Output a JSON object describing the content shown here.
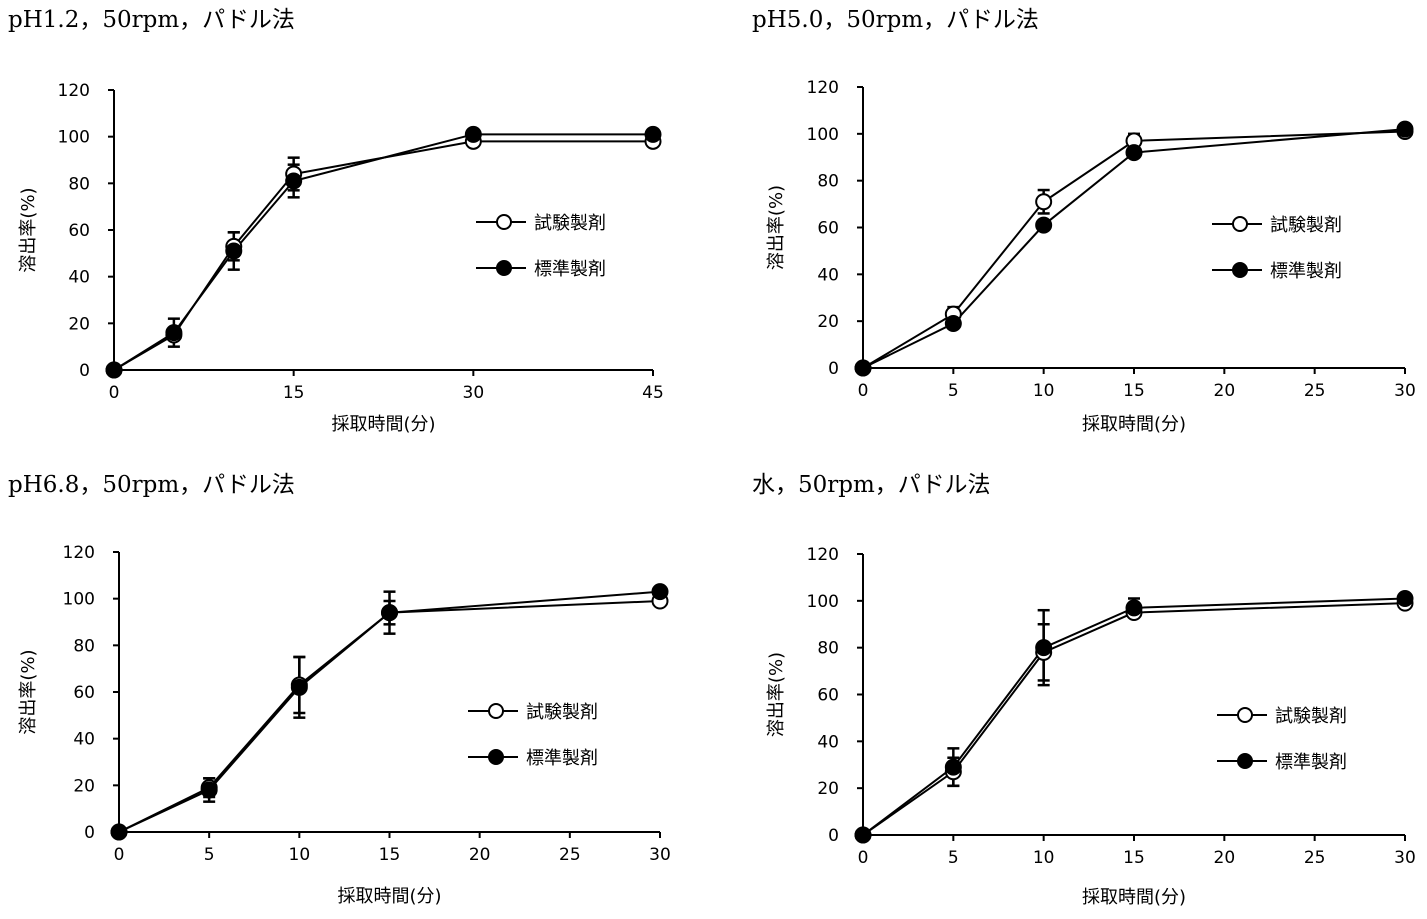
{
  "panels": [
    {
      "title": "pH1.2，50rpm，パドル法",
      "chart_data": {
        "type": "line",
        "xlabel": "採取時間(分)",
        "ylabel": "溶出率(%)",
        "x_ticks": [
          "0",
          "15",
          "30",
          "45"
        ],
        "y_ticks": [
          "0",
          "20",
          "40",
          "60",
          "80",
          "100",
          "120"
        ],
        "ylim": [
          0,
          120
        ],
        "x_scale": "piecewise",
        "x_tick_values": [
          0,
          15,
          30,
          45
        ],
        "series": [
          {
            "name": "試験製剤",
            "marker": "open-circle",
            "points": [
              {
                "x": 0,
                "y": 0
              },
              {
                "x": 5,
                "y": 15
              },
              {
                "x": 10,
                "y": 53,
                "err": 6
              },
              {
                "x": 15,
                "y": 84,
                "err": 7
              },
              {
                "x": 30,
                "y": 98
              },
              {
                "x": 45,
                "y": 98
              }
            ]
          },
          {
            "name": "標準製剤",
            "marker": "filled-circle",
            "points": [
              {
                "x": 0,
                "y": 0
              },
              {
                "x": 5,
                "y": 16,
                "err": 6
              },
              {
                "x": 10,
                "y": 51,
                "err": 8
              },
              {
                "x": 15,
                "y": 81,
                "err": 7
              },
              {
                "x": 30,
                "y": 101
              },
              {
                "x": 45,
                "y": 101
              }
            ]
          }
        ],
        "legend": [
          {
            "label": "試験製剤",
            "marker": "open-circle"
          },
          {
            "label": "標準製剤",
            "marker": "filled-circle"
          }
        ],
        "legend_placement": "center-right"
      }
    },
    {
      "title": "pH5.0，50rpm，パドル法",
      "chart_data": {
        "type": "line",
        "xlabel": "採取時間(分)",
        "ylabel": "溶出率(%)",
        "x_ticks": [
          "0",
          "5",
          "10",
          "15",
          "20",
          "25",
          "30"
        ],
        "y_ticks": [
          "0",
          "20",
          "40",
          "60",
          "80",
          "100",
          "120"
        ],
        "ylim": [
          0,
          120
        ],
        "x_scale": "linear",
        "x_tick_values": [
          0,
          5,
          10,
          15,
          20,
          25,
          30
        ],
        "series": [
          {
            "name": "試験製剤",
            "marker": "open-circle",
            "points": [
              {
                "x": 0,
                "y": 0
              },
              {
                "x": 5,
                "y": 23,
                "err": 3
              },
              {
                "x": 10,
                "y": 71,
                "err": 5
              },
              {
                "x": 15,
                "y": 97,
                "err": 3
              },
              {
                "x": 30,
                "y": 101,
                "err": 2
              }
            ]
          },
          {
            "name": "標準製剤",
            "marker": "filled-circle",
            "points": [
              {
                "x": 0,
                "y": 0
              },
              {
                "x": 5,
                "y": 19
              },
              {
                "x": 10,
                "y": 61
              },
              {
                "x": 15,
                "y": 92
              },
              {
                "x": 30,
                "y": 102
              }
            ]
          }
        ],
        "legend": [
          {
            "label": "試験製剤",
            "marker": "open-circle"
          },
          {
            "label": "標準製剤",
            "marker": "filled-circle"
          }
        ],
        "legend_placement": "center-right"
      }
    },
    {
      "title": "pH6.8，50rpm，パドル法",
      "chart_data": {
        "type": "line",
        "xlabel": "採取時間(分)",
        "ylabel": "溶出率(%)",
        "x_ticks": [
          "0",
          "5",
          "10",
          "15",
          "20",
          "25",
          "30"
        ],
        "y_ticks": [
          "0",
          "20",
          "40",
          "60",
          "80",
          "100",
          "120"
        ],
        "ylim": [
          0,
          120
        ],
        "x_scale": "linear",
        "x_tick_values": [
          0,
          5,
          10,
          15,
          20,
          25,
          30
        ],
        "series": [
          {
            "name": "試験製剤",
            "marker": "open-circle",
            "points": [
              {
                "x": 0,
                "y": 0
              },
              {
                "x": 5,
                "y": 19,
                "err": 4
              },
              {
                "x": 10,
                "y": 63,
                "err": 12
              },
              {
                "x": 15,
                "y": 94,
                "err": 5
              },
              {
                "x": 30,
                "y": 99
              }
            ]
          },
          {
            "name": "標準製剤",
            "marker": "filled-circle",
            "points": [
              {
                "x": 0,
                "y": 0
              },
              {
                "x": 5,
                "y": 18,
                "err": 5
              },
              {
                "x": 10,
                "y": 62,
                "err": 13
              },
              {
                "x": 15,
                "y": 94,
                "err": 9
              },
              {
                "x": 30,
                "y": 103
              }
            ]
          }
        ],
        "legend": [
          {
            "label": "試験製剤",
            "marker": "open-circle"
          },
          {
            "label": "標準製剤",
            "marker": "filled-circle"
          }
        ],
        "legend_placement": "center-right"
      }
    },
    {
      "title": "水，50rpm，パドル法",
      "chart_data": {
        "type": "line",
        "xlabel": "採取時間(分)",
        "ylabel": "溶出率(%)",
        "x_ticks": [
          "0",
          "5",
          "10",
          "15",
          "20",
          "25",
          "30"
        ],
        "y_ticks": [
          "0",
          "20",
          "40",
          "60",
          "80",
          "100",
          "120"
        ],
        "ylim": [
          0,
          120
        ],
        "x_scale": "linear",
        "x_tick_values": [
          0,
          5,
          10,
          15,
          20,
          25,
          30
        ],
        "series": [
          {
            "name": "試験製剤",
            "marker": "open-circle",
            "points": [
              {
                "x": 0,
                "y": 0
              },
              {
                "x": 5,
                "y": 27,
                "err": 6
              },
              {
                "x": 10,
                "y": 78,
                "err": 12
              },
              {
                "x": 15,
                "y": 95,
                "err": 2
              },
              {
                "x": 30,
                "y": 99
              }
            ]
          },
          {
            "name": "標準製剤",
            "marker": "filled-circle",
            "points": [
              {
                "x": 0,
                "y": 0
              },
              {
                "x": 5,
                "y": 29,
                "err": 8
              },
              {
                "x": 10,
                "y": 80,
                "err": 16
              },
              {
                "x": 15,
                "y": 97,
                "err": 4
              },
              {
                "x": 30,
                "y": 101
              }
            ]
          }
        ],
        "legend": [
          {
            "label": "試験製剤",
            "marker": "open-circle"
          },
          {
            "label": "標準製剤",
            "marker": "filled-circle"
          }
        ],
        "legend_placement": "center-right"
      }
    }
  ]
}
